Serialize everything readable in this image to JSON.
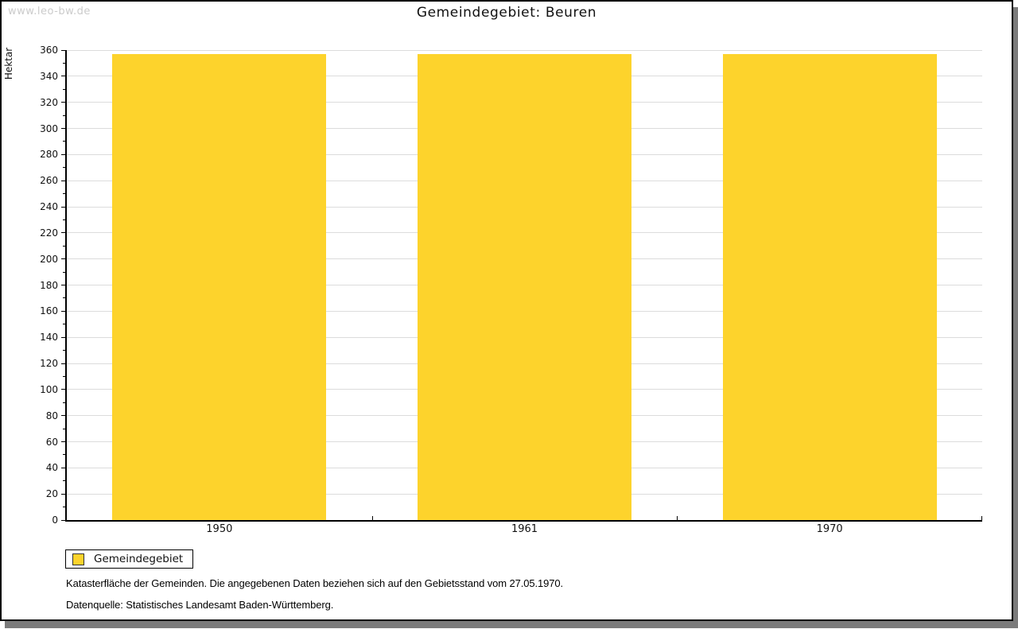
{
  "watermark": "www.leo-bw.de",
  "title": "Gemeindegebiet: Beuren",
  "chart_data": {
    "type": "bar",
    "title": "Gemeindegebiet: Beuren",
    "categories": [
      "1950",
      "1961",
      "1970"
    ],
    "series": [
      {
        "name": "Gemeindegebiet",
        "values": [
          357,
          357,
          357
        ]
      }
    ],
    "xlabel": "",
    "ylabel": "Hektar",
    "ylim": [
      0,
      360
    ],
    "ytick_step": 20,
    "yminor_step": 10,
    "grid": true,
    "bar_color": "#fdd32c",
    "gridline_color": "#dcdcdc",
    "legend_position": "bottom-left"
  },
  "legend": {
    "items": [
      {
        "label": "Gemeindegebiet",
        "color": "#fdd32c"
      }
    ]
  },
  "footnotes": [
    "Katasterfläche der Gemeinden. Die angegebenen Daten beziehen sich auf den Gebietsstand vom 27.05.1970.",
    "Datenquelle: Statistisches Landesamt Baden-Württemberg."
  ]
}
